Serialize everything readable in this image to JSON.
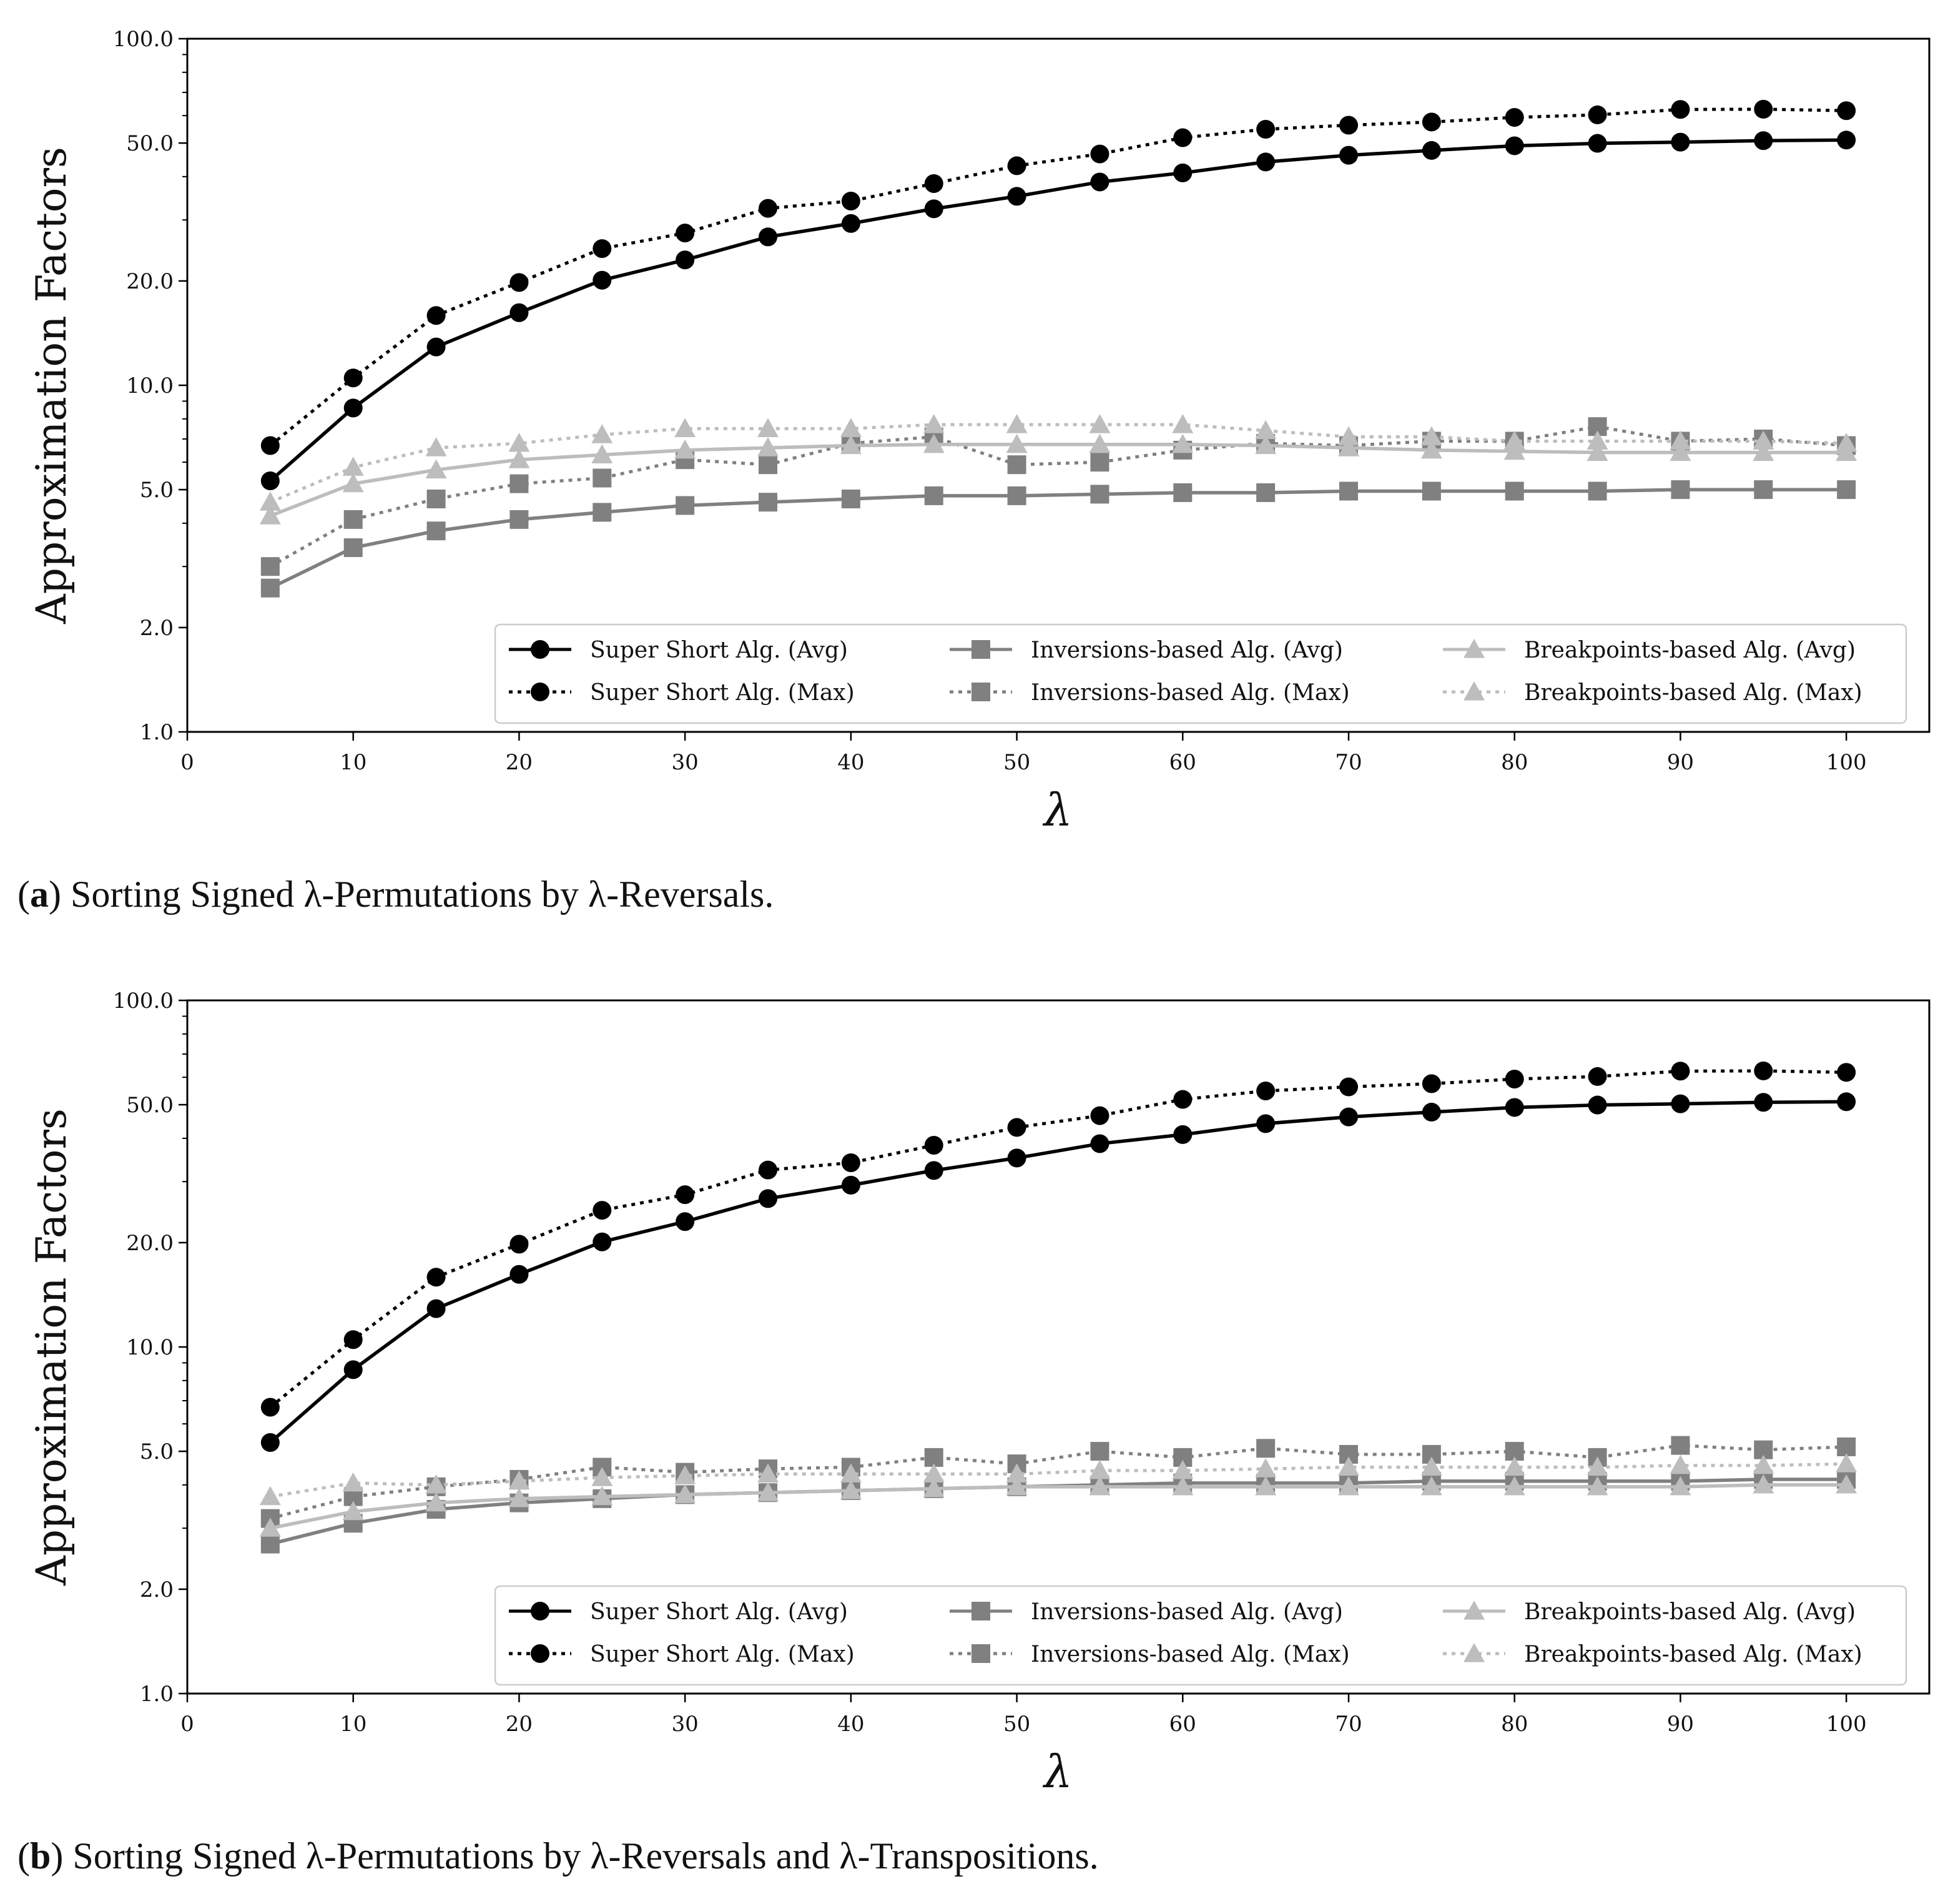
{
  "colors": {
    "super_short": "#000000",
    "inversions": "#808080",
    "breakpoints": "#bdbdbd",
    "axis": "#000000",
    "legend_border": "#cccccc"
  },
  "chart_data": [
    {
      "panel_label": "a",
      "caption": "Sorting Signed λ-Permutations by λ-Reversals.",
      "type": "line",
      "xlabel": "λ",
      "ylabel": "Approximation Factors",
      "xscale": "linear",
      "yscale": "log",
      "xlim": [
        0,
        105
      ],
      "ylim": [
        1.0,
        100.0
      ],
      "xticks": [
        0,
        10,
        20,
        30,
        40,
        50,
        60,
        70,
        80,
        90,
        100
      ],
      "xtick_labels": [
        "0",
        "10",
        "20",
        "30",
        "40",
        "50",
        "60",
        "70",
        "80",
        "90",
        "100"
      ],
      "yticks": [
        1.0,
        2.0,
        5.0,
        10.0,
        20.0,
        50.0,
        100.0
      ],
      "ytick_labels": [
        "1.0",
        "2.0",
        "5.0",
        "10.0",
        "20.0",
        "50.0",
        "100.0"
      ],
      "legend_position": "lower-right",
      "legend_columns": 3,
      "x": [
        5,
        10,
        15,
        20,
        25,
        30,
        35,
        40,
        45,
        50,
        55,
        60,
        65,
        70,
        75,
        80,
        85,
        90,
        95,
        100
      ],
      "series": [
        {
          "name": "Super Short Alg. (Avg)",
          "color_key": "super_short",
          "style": "solid",
          "marker": "circle",
          "values": [
            5.3,
            8.6,
            12.9,
            16.2,
            20.1,
            23.0,
            26.8,
            29.3,
            32.3,
            35.1,
            38.6,
            41.0,
            44.1,
            46.1,
            47.6,
            49.1,
            49.9,
            50.3,
            50.8,
            51.0
          ]
        },
        {
          "name": "Super Short Alg. (Max)",
          "color_key": "super_short",
          "style": "dotted",
          "marker": "circle",
          "values": [
            6.7,
            10.5,
            15.9,
            19.8,
            24.8,
            27.5,
            32.4,
            34.0,
            38.2,
            43.0,
            46.5,
            51.8,
            54.8,
            56.3,
            57.5,
            59.3,
            60.3,
            62.5,
            62.6,
            62.0
          ]
        },
        {
          "name": "Inversions-based Alg. (Avg)",
          "color_key": "inversions",
          "style": "solid",
          "marker": "square",
          "values": [
            2.6,
            3.4,
            3.8,
            4.1,
            4.3,
            4.5,
            4.6,
            4.7,
            4.8,
            4.8,
            4.85,
            4.9,
            4.9,
            4.95,
            4.95,
            4.95,
            4.95,
            5.0,
            5.0,
            5.0
          ]
        },
        {
          "name": "Inversions-based Alg. (Max)",
          "color_key": "inversions",
          "style": "dotted",
          "marker": "square",
          "values": [
            3.0,
            4.1,
            4.7,
            5.2,
            5.4,
            6.1,
            5.9,
            6.8,
            7.1,
            5.9,
            6.0,
            6.5,
            6.8,
            6.7,
            6.9,
            6.9,
            7.6,
            6.9,
            7.0,
            6.7
          ]
        },
        {
          "name": "Breakpoints-based Alg. (Avg)",
          "color_key": "breakpoints",
          "style": "solid",
          "marker": "triangle",
          "values": [
            4.2,
            5.2,
            5.7,
            6.1,
            6.3,
            6.5,
            6.6,
            6.7,
            6.75,
            6.75,
            6.75,
            6.75,
            6.7,
            6.6,
            6.5,
            6.45,
            6.4,
            6.4,
            6.4,
            6.4
          ]
        },
        {
          "name": "Breakpoints-based Alg. (Max)",
          "color_key": "breakpoints",
          "style": "dotted",
          "marker": "triangle",
          "values": [
            4.6,
            5.8,
            6.6,
            6.8,
            7.2,
            7.5,
            7.5,
            7.5,
            7.7,
            7.7,
            7.7,
            7.7,
            7.4,
            7.1,
            7.1,
            6.9,
            6.9,
            6.9,
            6.9,
            6.8
          ]
        }
      ]
    },
    {
      "panel_label": "b",
      "caption": "Sorting Signed λ-Permutations by λ-Reversals and λ-Transpositions.",
      "type": "line",
      "xlabel": "λ",
      "ylabel": "Approximation Factors",
      "xscale": "linear",
      "yscale": "log",
      "xlim": [
        0,
        105
      ],
      "ylim": [
        1.0,
        100.0
      ],
      "xticks": [
        0,
        10,
        20,
        30,
        40,
        50,
        60,
        70,
        80,
        90,
        100
      ],
      "xtick_labels": [
        "0",
        "10",
        "20",
        "30",
        "40",
        "50",
        "60",
        "70",
        "80",
        "90",
        "100"
      ],
      "yticks": [
        1.0,
        2.0,
        5.0,
        10.0,
        20.0,
        50.0,
        100.0
      ],
      "ytick_labels": [
        "1.0",
        "2.0",
        "5.0",
        "10.0",
        "20.0",
        "50.0",
        "100.0"
      ],
      "legend_position": "lower-right",
      "legend_columns": 3,
      "x": [
        5,
        10,
        15,
        20,
        25,
        30,
        35,
        40,
        45,
        50,
        55,
        60,
        65,
        70,
        75,
        80,
        85,
        90,
        95,
        100
      ],
      "series": [
        {
          "name": "Super Short Alg. (Avg)",
          "color_key": "super_short",
          "style": "solid",
          "marker": "circle",
          "values": [
            5.3,
            8.6,
            12.9,
            16.2,
            20.1,
            23.0,
            26.8,
            29.3,
            32.3,
            35.1,
            38.6,
            41.0,
            44.1,
            46.1,
            47.6,
            49.1,
            49.9,
            50.3,
            50.8,
            51.0
          ]
        },
        {
          "name": "Super Short Alg. (Max)",
          "color_key": "super_short",
          "style": "dotted",
          "marker": "circle",
          "values": [
            6.7,
            10.5,
            15.9,
            19.8,
            24.8,
            27.5,
            32.4,
            34.0,
            38.2,
            43.0,
            46.5,
            51.8,
            54.8,
            56.3,
            57.5,
            59.3,
            60.3,
            62.5,
            62.6,
            62.0
          ]
        },
        {
          "name": "Inversions-based Alg. (Avg)",
          "color_key": "inversions",
          "style": "solid",
          "marker": "square",
          "values": [
            2.7,
            3.1,
            3.4,
            3.55,
            3.65,
            3.75,
            3.8,
            3.85,
            3.9,
            3.95,
            4.0,
            4.05,
            4.05,
            4.05,
            4.1,
            4.1,
            4.1,
            4.1,
            4.15,
            4.15
          ]
        },
        {
          "name": "Inversions-based Alg. (Max)",
          "color_key": "inversions",
          "style": "dotted",
          "marker": "square",
          "values": [
            3.2,
            3.7,
            3.95,
            4.15,
            4.5,
            4.35,
            4.45,
            4.5,
            4.8,
            4.6,
            5.0,
            4.8,
            5.1,
            4.9,
            4.9,
            5.0,
            4.8,
            5.2,
            5.05,
            5.15
          ]
        },
        {
          "name": "Breakpoints-based Alg. (Avg)",
          "color_key": "breakpoints",
          "style": "solid",
          "marker": "triangle",
          "values": [
            3.0,
            3.35,
            3.55,
            3.65,
            3.7,
            3.75,
            3.8,
            3.85,
            3.9,
            3.95,
            3.95,
            3.95,
            3.95,
            3.95,
            3.95,
            3.95,
            3.95,
            3.95,
            4.0,
            4.0
          ]
        },
        {
          "name": "Breakpoints-based Alg. (Max)",
          "color_key": "breakpoints",
          "style": "dotted",
          "marker": "triangle",
          "values": [
            3.7,
            4.05,
            4.0,
            4.1,
            4.2,
            4.25,
            4.3,
            4.3,
            4.3,
            4.3,
            4.4,
            4.4,
            4.45,
            4.5,
            4.5,
            4.5,
            4.5,
            4.55,
            4.55,
            4.6
          ]
        }
      ]
    }
  ]
}
